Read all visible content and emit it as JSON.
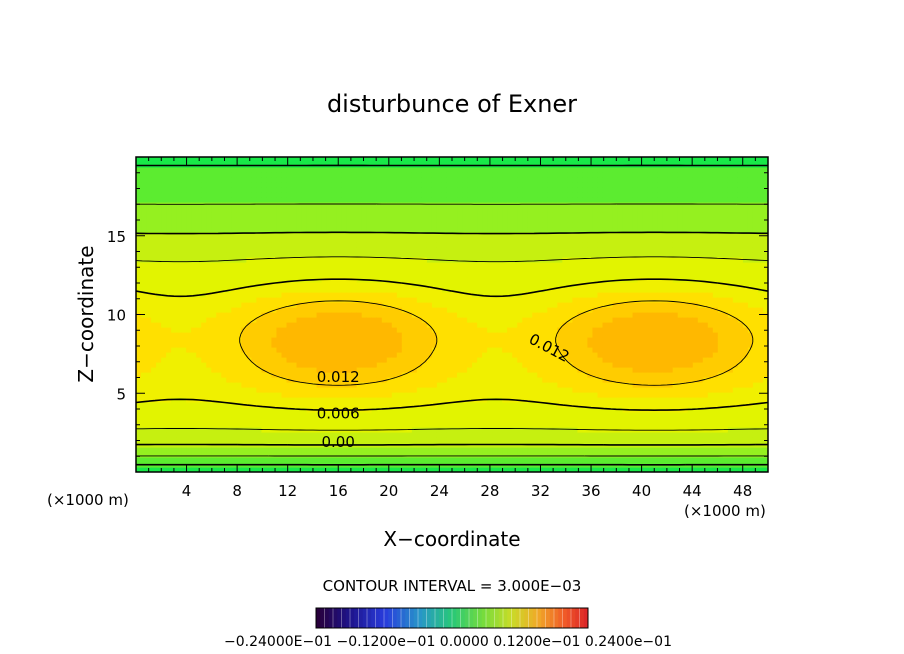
{
  "chart_data": {
    "type": "heatmap",
    "title": "disturbunce of Exner",
    "xlabel": "X−coordinate",
    "ylabel": "Z−coordinate",
    "x_unit": "(×1000 m)",
    "y_unit": "(×1000 m)",
    "xlim": [
      0,
      50
    ],
    "ylim": [
      0,
      20
    ],
    "x_ticks": [
      "4",
      "8",
      "12",
      "16",
      "20",
      "24",
      "28",
      "32",
      "36",
      "40",
      "44",
      "48"
    ],
    "y_ticks": [
      "5",
      "10",
      "15"
    ],
    "contour_interval_text": "CONTOUR INTERVAL = 3.000E−03",
    "colorbar_labels_text": "−0.24000E−01   −0.1200e−01   0.0000   0.1200e−01   0.2400e−01",
    "colorbar_range": [
      -0.024,
      0.024
    ],
    "contour_labels": [
      {
        "text": "0.012",
        "x": 16,
        "z": 5.7
      },
      {
        "text": "0.012",
        "x": 32.5,
        "z": 7.6
      },
      {
        "text": "0.006",
        "x": 16,
        "z": 3.4
      },
      {
        "text": "0.00",
        "x": 16,
        "z": 1.6
      }
    ],
    "field_description_values": {
      "max_value": 0.0165,
      "max_location_x": [
        16,
        40
      ],
      "max_location_z": 8,
      "min_value": -0.0015,
      "min_location_z": 0
    },
    "grid": false
  }
}
